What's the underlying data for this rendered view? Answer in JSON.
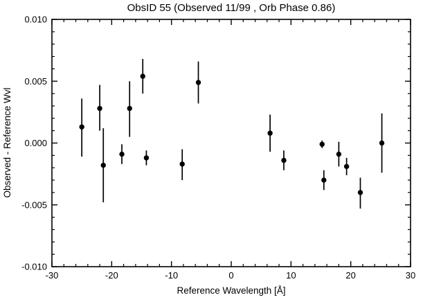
{
  "chart_data": {
    "type": "scatter",
    "title": "ObsID 55 (Observed 11/99 , Orb Phase 0.86)",
    "xlabel": "Reference Wavelength [Å]",
    "ylabel": "Observed - Reference Wvl",
    "xlim": [
      -30,
      30
    ],
    "ylim": [
      -0.01,
      0.01
    ],
    "xticks": [
      -30,
      -20,
      -10,
      0,
      10,
      20,
      30
    ],
    "yticks": [
      -0.01,
      -0.005,
      0.0,
      0.005,
      0.01
    ],
    "x_minor_step": 2,
    "y_minor_step": 0.001,
    "grid": false,
    "legend": "none",
    "marker": "filled-circle",
    "marker_color": "#000000",
    "error_bars": "vertical-no-caps",
    "frame_color": "#000000",
    "background_color": "#ffffff",
    "points": [
      {
        "x": -25.0,
        "y": 0.0013,
        "err_lo": 0.0024,
        "err_hi": 0.0023
      },
      {
        "x": -22.0,
        "y": 0.0028,
        "err_lo": 0.0018,
        "err_hi": 0.0019
      },
      {
        "x": -21.4,
        "y": -0.0018,
        "err_lo": 0.003,
        "err_hi": 0.003
      },
      {
        "x": -18.3,
        "y": -0.0009,
        "err_lo": 0.0008,
        "err_hi": 0.0008
      },
      {
        "x": -17.0,
        "y": 0.0028,
        "err_lo": 0.0023,
        "err_hi": 0.0022
      },
      {
        "x": -14.8,
        "y": 0.0054,
        "err_lo": 0.0014,
        "err_hi": 0.0014
      },
      {
        "x": -14.2,
        "y": -0.0012,
        "err_lo": 0.0006,
        "err_hi": 0.0006
      },
      {
        "x": -8.2,
        "y": -0.0017,
        "err_lo": 0.0013,
        "err_hi": 0.0012
      },
      {
        "x": -5.5,
        "y": 0.0049,
        "err_lo": 0.0017,
        "err_hi": 0.0017
      },
      {
        "x": 6.5,
        "y": 0.0008,
        "err_lo": 0.0015,
        "err_hi": 0.0015
      },
      {
        "x": 8.8,
        "y": -0.0014,
        "err_lo": 0.0008,
        "err_hi": 0.0008
      },
      {
        "x": 15.2,
        "y": -0.0001,
        "err_lo": 0.0003,
        "err_hi": 0.0003
      },
      {
        "x": 15.5,
        "y": -0.003,
        "err_lo": 0.0008,
        "err_hi": 0.0008
      },
      {
        "x": 18.0,
        "y": -0.0009,
        "err_lo": 0.001,
        "err_hi": 0.001
      },
      {
        "x": 19.3,
        "y": -0.0019,
        "err_lo": 0.0007,
        "err_hi": 0.0007
      },
      {
        "x": 21.6,
        "y": -0.004,
        "err_lo": 0.0013,
        "err_hi": 0.0012
      },
      {
        "x": 25.2,
        "y": 0.0,
        "err_lo": 0.0024,
        "err_hi": 0.0024
      }
    ]
  }
}
